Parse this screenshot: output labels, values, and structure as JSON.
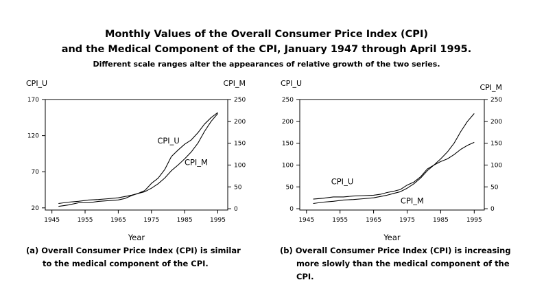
{
  "figure": {
    "title_line1": "Monthly Values of the Overall Consumer Price Index (CPI)",
    "title_line2": "and the Medical Component of the CPI, January 1947 through April 1995.",
    "subtitle": "Different scale ranges alter the appearances of relative growth of the two series."
  },
  "chart_data": [
    {
      "type": "line",
      "panel": "a",
      "xlabel": "Year",
      "left_axis_label": "CPI_U",
      "right_axis_label": "CPI_M",
      "xlim": [
        1943,
        1998
      ],
      "x_ticks": [
        1945,
        1955,
        1965,
        1975,
        1985,
        1995
      ],
      "left_ylim": [
        17,
        170
      ],
      "left_ticks": [
        20,
        70,
        120,
        170
      ],
      "right_ylim": [
        -3,
        250
      ],
      "right_ticks": [
        0,
        50,
        100,
        150,
        200,
        250
      ],
      "grid": false,
      "caption_line1": "(a) Overall Consumer Price Index (CPI) is similar",
      "caption_line2": "to the medical component of the CPI.",
      "series": [
        {
          "name": "CPI_U",
          "axis": "left",
          "label_pos": [
            1983.5,
            109
          ],
          "x": [
            1947,
            1950,
            1953,
            1956,
            1959,
            1962,
            1965,
            1967,
            1969,
            1971,
            1973,
            1975,
            1977,
            1979,
            1981,
            1983,
            1985,
            1987,
            1989,
            1991,
            1993,
            1995
          ],
          "y": [
            22,
            24,
            27,
            27,
            29,
            30,
            31,
            33,
            37,
            40,
            44,
            54,
            61,
            73,
            91,
            100,
            108,
            114,
            124,
            136,
            145,
            152
          ]
        },
        {
          "name": "CPI_M",
          "axis": "right",
          "label_pos": [
            1992,
            100
          ],
          "x": [
            1947,
            1950,
            1953,
            1956,
            1959,
            1962,
            1965,
            1967,
            1969,
            1971,
            1973,
            1975,
            1977,
            1979,
            1981,
            1983,
            1985,
            1987,
            1989,
            1991,
            1993,
            1995
          ],
          "y": [
            12,
            15,
            17,
            20,
            21,
            23,
            25,
            28,
            31,
            35,
            39,
            47,
            57,
            70,
            87,
            100,
            114,
            130,
            150,
            177,
            200,
            218
          ]
        }
      ]
    },
    {
      "type": "line",
      "panel": "b",
      "xlabel": "Year",
      "left_axis_label": "CPI_U",
      "right_axis_label": "CPI_M",
      "xlim": [
        1943,
        1998
      ],
      "x_ticks": [
        1945,
        1955,
        1965,
        1975,
        1985,
        1995
      ],
      "left_ylim": [
        -3,
        250
      ],
      "left_ticks": [
        0,
        50,
        100,
        150,
        200,
        250
      ],
      "right_ylim": [
        -3,
        250
      ],
      "right_ticks": [
        0,
        50,
        100,
        150,
        200,
        250
      ],
      "grid": false,
      "caption_line1": "(b) Overall Consumer Price Index (CPI) is increasing",
      "caption_line2": "more slowly than the medical component of the",
      "caption_line3": "CPI.",
      "series": [
        {
          "name": "CPI_U",
          "axis": "left",
          "label_pos": [
            1959,
            56
          ],
          "x": [
            1947,
            1950,
            1953,
            1956,
            1959,
            1962,
            1965,
            1967,
            1969,
            1971,
            1973,
            1975,
            1977,
            1979,
            1981,
            1983,
            1985,
            1987,
            1989,
            1991,
            1993,
            1995
          ],
          "y": [
            22,
            24,
            27,
            27,
            29,
            30,
            31,
            33,
            37,
            40,
            44,
            54,
            61,
            73,
            91,
            100,
            108,
            114,
            124,
            136,
            145,
            152
          ]
        },
        {
          "name": "CPI_M",
          "axis": "left",
          "label_pos": [
            1980,
            12
          ],
          "x": [
            1947,
            1950,
            1953,
            1956,
            1959,
            1962,
            1965,
            1967,
            1969,
            1971,
            1973,
            1975,
            1977,
            1979,
            1981,
            1983,
            1985,
            1987,
            1989,
            1991,
            1993,
            1995
          ],
          "y": [
            12,
            15,
            17,
            20,
            21,
            23,
            25,
            28,
            31,
            35,
            39,
            47,
            57,
            70,
            87,
            100,
            114,
            130,
            150,
            177,
            200,
            218
          ]
        }
      ]
    }
  ]
}
